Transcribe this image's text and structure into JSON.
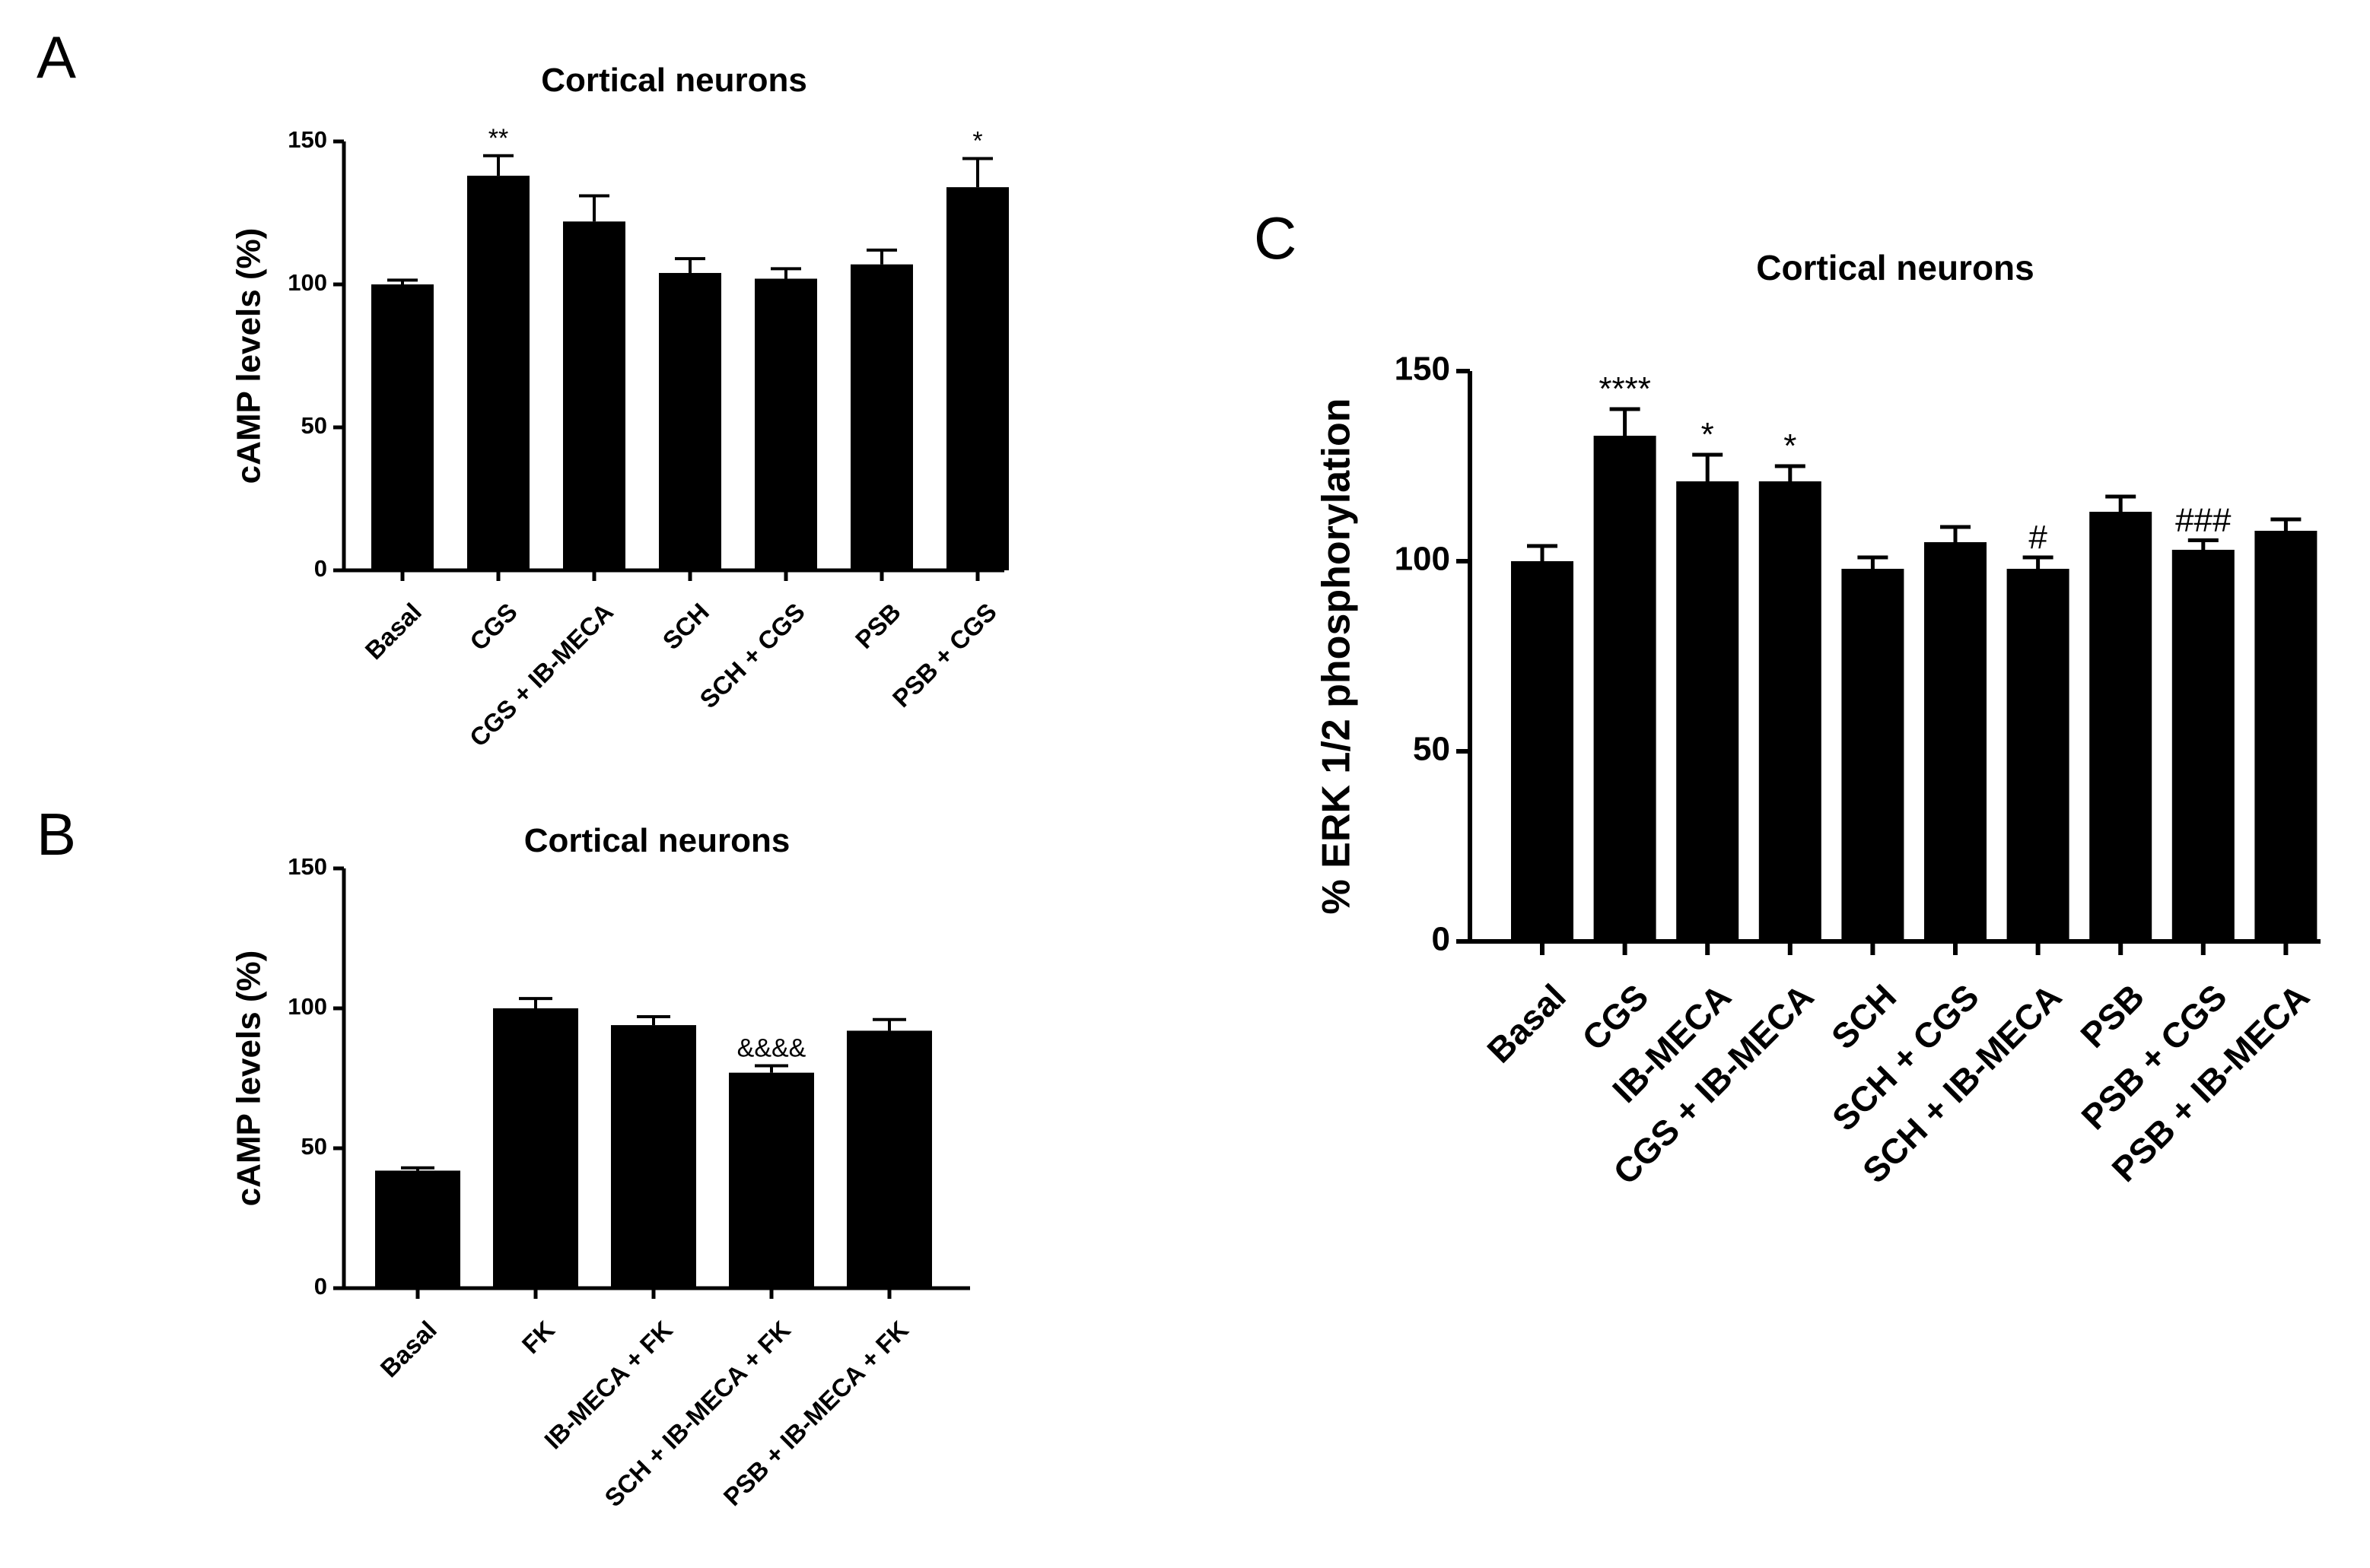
{
  "figure": {
    "panels": [
      "A",
      "B",
      "C"
    ]
  },
  "chart_data": [
    {
      "panel": "A",
      "type": "bar",
      "title": "Cortical neurons",
      "xlabel": "",
      "ylabel": "cAMP levels (%)",
      "ylim": [
        0,
        150
      ],
      "yticks": [
        0,
        50,
        100,
        150
      ],
      "grid": false,
      "categories": [
        "Basal",
        "CGS",
        "CGS + IB-MECA",
        "SCH",
        "SCH + CGS",
        "PSB",
        "PSB + CGS"
      ],
      "values": [
        100,
        138,
        122,
        104,
        102,
        107,
        134
      ],
      "errors": [
        1.5,
        7,
        9,
        5,
        3.5,
        5,
        10
      ],
      "annotations": [
        "",
        "**",
        "",
        "",
        "",
        "",
        "*"
      ],
      "bar_color": "#000000"
    },
    {
      "panel": "B",
      "type": "bar",
      "title": "Cortical neurons",
      "xlabel": "",
      "ylabel": "cAMP levels (%)",
      "ylim": [
        0,
        150
      ],
      "yticks": [
        0,
        50,
        100,
        150
      ],
      "grid": false,
      "categories": [
        "Basal",
        "FK",
        "IB-MECA + FK",
        "SCH + IB-MECA + FK",
        "PSB + IB-MECA + FK"
      ],
      "values": [
        42,
        100,
        94,
        77,
        92
      ],
      "errors": [
        1,
        3.5,
        3,
        2.5,
        4
      ],
      "annotations": [
        "",
        "",
        "",
        "&&&&",
        ""
      ],
      "bar_color": "#000000"
    },
    {
      "panel": "C",
      "type": "bar",
      "title": "Cortical neurons",
      "xlabel": "",
      "ylabel": "% ERK 1/2 phosphorylation",
      "ylim": [
        0,
        150
      ],
      "yticks": [
        0,
        50,
        100,
        150
      ],
      "grid": false,
      "categories": [
        "Basal",
        "CGS",
        "IB-MECA",
        "CGS + IB-MECA",
        "SCH",
        "SCH + CGS",
        "SCH + IB-MECA",
        "PSB",
        "PSB + CGS",
        "PSB + IB-MECA"
      ],
      "values": [
        100,
        133,
        121,
        121,
        98,
        105,
        98,
        113,
        103,
        108
      ],
      "errors": [
        4,
        7,
        7,
        4,
        3,
        4,
        3,
        4,
        2.5,
        3
      ],
      "annotations": [
        "",
        "****",
        "*",
        "*",
        "",
        "",
        "#",
        "",
        "###",
        ""
      ],
      "bar_color": "#000000"
    }
  ]
}
